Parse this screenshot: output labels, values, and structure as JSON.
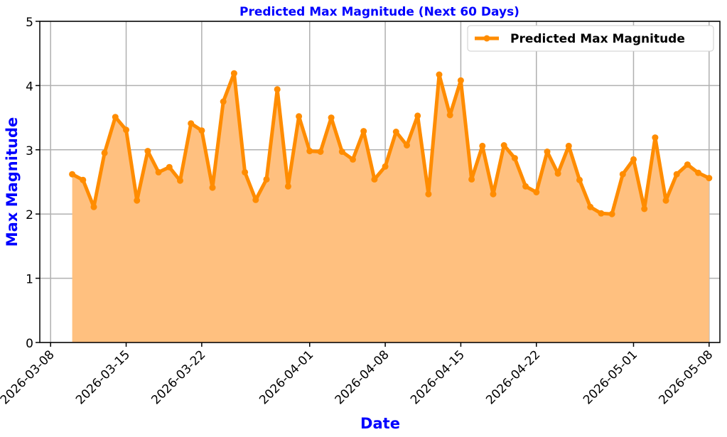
{
  "chart_data": {
    "type": "line",
    "title": "Predicted Max Magnitude (Next 60 Days)",
    "xlabel": "Date",
    "ylabel": "Max Magnitude",
    "legend": {
      "placement": "top-right",
      "entries": [
        "Predicted Max Magnitude"
      ]
    },
    "grid": true,
    "x_axis": {
      "type": "date",
      "range": [
        "2026-03-07",
        "2026-05-09"
      ],
      "ticks": [
        "2026-03-08",
        "2026-03-15",
        "2026-03-22",
        "2026-04-01",
        "2026-04-08",
        "2026-04-15",
        "2026-04-22",
        "2026-05-01",
        "2026-05-08"
      ]
    },
    "y_axis": {
      "range": [
        0,
        5
      ],
      "ticks": [
        "0",
        "1",
        "2",
        "3",
        "4",
        "5"
      ]
    },
    "series": [
      {
        "name": "Predicted Max Magnitude",
        "color": "#ff8c00",
        "fill_color": "#ffc07f",
        "x_start": "2026-03-10",
        "x_step_days": 1,
        "values": [
          2.62,
          2.53,
          2.11,
          2.95,
          3.51,
          3.31,
          2.21,
          2.98,
          2.65,
          2.73,
          2.52,
          3.41,
          3.3,
          2.41,
          3.75,
          4.19,
          2.65,
          2.22,
          2.54,
          3.94,
          2.43,
          3.52,
          2.98,
          2.97,
          3.5,
          2.97,
          2.85,
          3.29,
          2.54,
          2.74,
          3.28,
          3.07,
          3.53,
          2.31,
          4.17,
          3.54,
          4.08,
          2.54,
          3.06,
          2.31,
          3.07,
          2.87,
          2.43,
          2.34,
          2.97,
          2.63,
          3.06,
          2.53,
          2.11,
          2.01,
          2.0,
          2.62,
          2.85,
          2.08,
          3.19,
          2.21,
          2.62,
          2.77,
          2.64,
          2.56
        ]
      }
    ]
  }
}
